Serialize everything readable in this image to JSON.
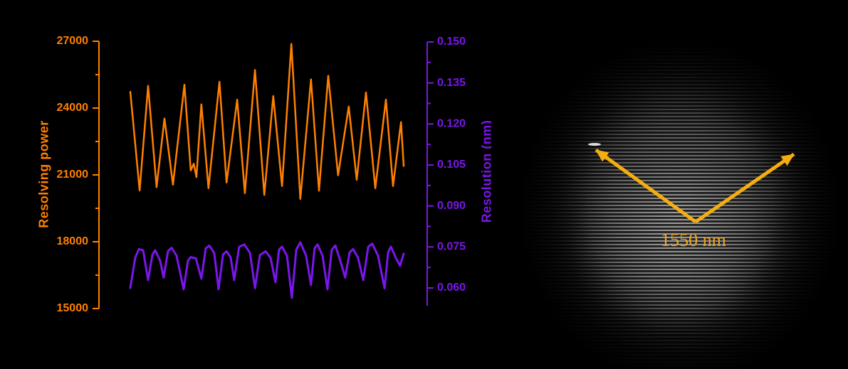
{
  "figure": {
    "background": "#000000"
  },
  "chart_data": {
    "type": "line",
    "title": "",
    "grid": false,
    "legend_position": "none",
    "background": "#000000",
    "x_axis": {
      "visible": false,
      "label": "",
      "x_range": [
        0,
        100
      ]
    },
    "left_axis": {
      "label": "Resolving power",
      "color": "#FF8000",
      "range": [
        15000,
        27000
      ],
      "ticks": [
        27000,
        24000,
        21000,
        18000,
        15000
      ],
      "tick_labels": [
        "27000",
        "24000",
        "21000",
        "18000",
        "15000"
      ],
      "minor_ticks": [
        25500,
        22500,
        19500,
        16500
      ]
    },
    "right_axis": {
      "label": "Resolution (nm)",
      "color": "#7A16EB",
      "range": [
        0.06,
        0.15
      ],
      "ticks": [
        0.15,
        0.135,
        0.12,
        0.105,
        0.09,
        0.075,
        0.06
      ],
      "tick_labels": [
        "0.150",
        "0.135",
        "0.120",
        "0.105",
        "0.090",
        "0.075",
        "0.060"
      ],
      "minor_ticks": [
        0.1425,
        0.1275,
        0.1125,
        0.0975,
        0.0825,
        0.0675
      ]
    },
    "series": [
      {
        "name": "Resolving power",
        "axis": "left",
        "color": "#FF8000",
        "points": [
          [
            0,
            24730
          ],
          [
            3.4,
            20300
          ],
          [
            6.5,
            25000
          ],
          [
            9.6,
            20450
          ],
          [
            12.5,
            23530
          ],
          [
            15.6,
            20560
          ],
          [
            19.8,
            25050
          ],
          [
            22.1,
            21200
          ],
          [
            23.2,
            21500
          ],
          [
            24.2,
            20900
          ],
          [
            26.0,
            24170
          ],
          [
            28.6,
            20400
          ],
          [
            32.6,
            25180
          ],
          [
            35.2,
            20660
          ],
          [
            39.1,
            24380
          ],
          [
            41.9,
            20180
          ],
          [
            45.6,
            25710
          ],
          [
            49.0,
            20100
          ],
          [
            52.3,
            24540
          ],
          [
            55.5,
            20500
          ],
          [
            58.9,
            26880
          ],
          [
            62.2,
            19920
          ],
          [
            66.1,
            25290
          ],
          [
            69.0,
            20290
          ],
          [
            72.4,
            25450
          ],
          [
            76.0,
            20980
          ],
          [
            79.9,
            24070
          ],
          [
            82.8,
            20780
          ],
          [
            86.2,
            24700
          ],
          [
            89.6,
            20400
          ],
          [
            93.5,
            24380
          ],
          [
            96.1,
            20500
          ],
          [
            99.0,
            23370
          ],
          [
            100,
            21400
          ]
        ]
      },
      {
        "name": "Resolution (nm)",
        "axis": "right",
        "color": "#7A16EB",
        "points": [
          [
            0,
            0.06
          ],
          [
            1.8,
            0.071
          ],
          [
            3.1,
            0.0742
          ],
          [
            4.7,
            0.0738
          ],
          [
            6.5,
            0.0629
          ],
          [
            8.1,
            0.0722
          ],
          [
            9.1,
            0.0738
          ],
          [
            10.9,
            0.07
          ],
          [
            12.2,
            0.0638
          ],
          [
            13.8,
            0.0735
          ],
          [
            15.1,
            0.0747
          ],
          [
            16.9,
            0.0718
          ],
          [
            19.5,
            0.0595
          ],
          [
            21.1,
            0.07
          ],
          [
            22.1,
            0.0713
          ],
          [
            24.0,
            0.0708
          ],
          [
            26.0,
            0.0634
          ],
          [
            27.6,
            0.0745
          ],
          [
            28.9,
            0.0755
          ],
          [
            30.7,
            0.0728
          ],
          [
            32.3,
            0.0595
          ],
          [
            33.9,
            0.0722
          ],
          [
            35.2,
            0.0734
          ],
          [
            36.7,
            0.0712
          ],
          [
            38.0,
            0.0629
          ],
          [
            39.8,
            0.075
          ],
          [
            41.7,
            0.0759
          ],
          [
            43.8,
            0.0728
          ],
          [
            45.6,
            0.0599
          ],
          [
            47.4,
            0.072
          ],
          [
            49.5,
            0.0734
          ],
          [
            51.3,
            0.071
          ],
          [
            53.1,
            0.0621
          ],
          [
            54.4,
            0.074
          ],
          [
            55.5,
            0.0751
          ],
          [
            57.3,
            0.0718
          ],
          [
            59.1,
            0.0564
          ],
          [
            60.7,
            0.074
          ],
          [
            62.2,
            0.0767
          ],
          [
            64.3,
            0.0718
          ],
          [
            66.1,
            0.0611
          ],
          [
            67.4,
            0.0745
          ],
          [
            68.5,
            0.0759
          ],
          [
            70.3,
            0.0718
          ],
          [
            72.1,
            0.0595
          ],
          [
            73.7,
            0.074
          ],
          [
            75.0,
            0.0755
          ],
          [
            76.8,
            0.07
          ],
          [
            78.6,
            0.0638
          ],
          [
            80.2,
            0.073
          ],
          [
            81.5,
            0.0742
          ],
          [
            83.3,
            0.071
          ],
          [
            85.2,
            0.0629
          ],
          [
            87.0,
            0.075
          ],
          [
            88.5,
            0.0762
          ],
          [
            90.6,
            0.0718
          ],
          [
            93.0,
            0.0599
          ],
          [
            94.3,
            0.073
          ],
          [
            95.3,
            0.0751
          ],
          [
            97.1,
            0.071
          ],
          [
            98.7,
            0.0681
          ],
          [
            99.2,
            0.07
          ],
          [
            100,
            0.0725
          ]
        ]
      }
    ]
  },
  "photo": {
    "label": "1550 nm",
    "label_color": "#EDA621",
    "arrow_color": "#F6AE0F"
  }
}
